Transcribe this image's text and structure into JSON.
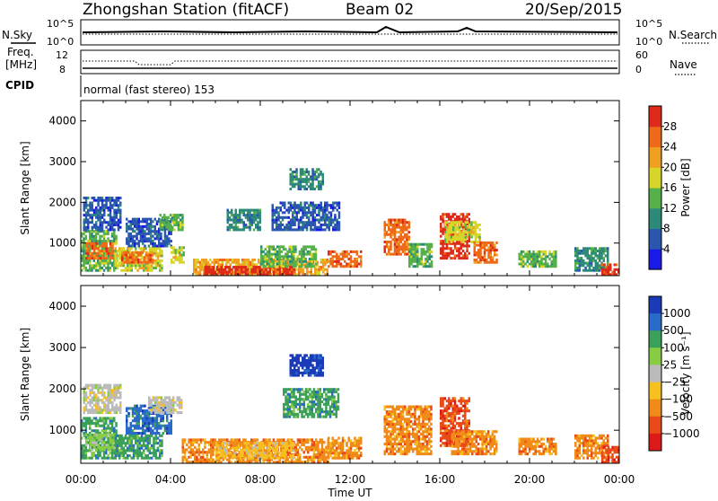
{
  "header": {
    "station": "Zhongshan Station (fitACF)",
    "beam": "Beam 02",
    "date": "20/Sep/2015"
  },
  "summary_panels": {
    "nsky_label": "N.Sky",
    "nsky_top": "10^5",
    "nsky_bottom": "10^0",
    "nsearch_label": "N.Search",
    "nsearch_top": "10^5",
    "nsearch_bottom": "10^0",
    "freq_label_1": "Freq.",
    "freq_label_2": "[MHz]",
    "freq_top": "12",
    "freq_bottom": "8",
    "nave_label": "Nave",
    "nave_top": "60",
    "nave_bottom": "0",
    "cpid_label": "CPID",
    "cpid_text": "normal (fast stereo) 153"
  },
  "chart_data": [
    {
      "type": "heatmap",
      "name": "power",
      "ylabel": "Slant Range [km]",
      "xlabel": "Time UT",
      "ylim": [
        200,
        4500
      ],
      "yticks": [
        1000,
        2000,
        3000,
        4000
      ],
      "xticks": [
        "00:00",
        "04:00",
        "08:00",
        "12:00",
        "16:00",
        "20:00",
        "00:00"
      ],
      "colorbar": {
        "label": "Power [dB]",
        "ticks": [
          "4",
          "8",
          "12",
          "16",
          "20",
          "24",
          "28"
        ],
        "colors": [
          "#1a1ae6",
          "#2a56b0",
          "#2e8a78",
          "#55b04a",
          "#d6d62a",
          "#f0a020",
          "#ee6a18",
          "#dd2a1a"
        ]
      },
      "regions": [
        {
          "t0": 0.0,
          "t1": 1.6,
          "r0": 300,
          "r1": 1300,
          "c": 3
        },
        {
          "t0": 0.2,
          "t1": 1.4,
          "r0": 600,
          "r1": 1000,
          "c": 6
        },
        {
          "t0": 0.1,
          "t1": 1.8,
          "r0": 1300,
          "r1": 2100,
          "c": 1
        },
        {
          "t0": 1.5,
          "t1": 3.6,
          "r0": 300,
          "r1": 900,
          "c": 4
        },
        {
          "t0": 1.8,
          "t1": 3.2,
          "r0": 500,
          "r1": 800,
          "c": 6
        },
        {
          "t0": 2.0,
          "t1": 4.0,
          "r0": 900,
          "r1": 1600,
          "c": 1
        },
        {
          "t0": 3.5,
          "t1": 4.5,
          "r0": 1300,
          "r1": 1700,
          "c": 3
        },
        {
          "t0": 4.0,
          "t1": 4.6,
          "r0": 500,
          "r1": 900,
          "c": 4
        },
        {
          "t0": 5.0,
          "t1": 11.0,
          "r0": 200,
          "r1": 600,
          "c": 5
        },
        {
          "t0": 5.5,
          "t1": 9.5,
          "r0": 200,
          "r1": 400,
          "c": 7
        },
        {
          "t0": 8.0,
          "t1": 10.5,
          "r0": 400,
          "r1": 900,
          "c": 3
        },
        {
          "t0": 11.0,
          "t1": 12.5,
          "r0": 400,
          "r1": 800,
          "c": 6
        },
        {
          "t0": 9.3,
          "t1": 10.8,
          "r0": 2300,
          "r1": 2800,
          "c": 2
        },
        {
          "t0": 8.5,
          "t1": 11.5,
          "r0": 1300,
          "r1": 2000,
          "c": 1
        },
        {
          "t0": 6.5,
          "t1": 8.0,
          "r0": 1300,
          "r1": 1800,
          "c": 2
        },
        {
          "t0": 13.5,
          "t1": 14.6,
          "r0": 700,
          "r1": 1600,
          "c": 6
        },
        {
          "t0": 14.6,
          "t1": 15.6,
          "r0": 400,
          "r1": 1000,
          "c": 3
        },
        {
          "t0": 16.0,
          "t1": 17.3,
          "r0": 600,
          "r1": 1700,
          "c": 7
        },
        {
          "t0": 16.2,
          "t1": 17.8,
          "r0": 1000,
          "r1": 1500,
          "c": 4
        },
        {
          "t0": 17.5,
          "t1": 18.5,
          "r0": 500,
          "r1": 1000,
          "c": 6
        },
        {
          "t0": 19.5,
          "t1": 21.2,
          "r0": 400,
          "r1": 800,
          "c": 3
        },
        {
          "t0": 22.0,
          "t1": 23.5,
          "r0": 300,
          "r1": 900,
          "c": 2
        },
        {
          "t0": 23.2,
          "t1": 24.0,
          "r0": 200,
          "r1": 500,
          "c": 7
        }
      ]
    },
    {
      "type": "heatmap",
      "name": "velocity",
      "ylabel": "Slant Range [km]",
      "xlabel": "Time UT",
      "ylim": [
        200,
        4500
      ],
      "yticks": [
        1000,
        2000,
        3000,
        4000
      ],
      "xticks": [
        "00:00",
        "04:00",
        "08:00",
        "12:00",
        "16:00",
        "20:00",
        "00:00"
      ],
      "colorbar": {
        "label": "Velocity [m s⁻¹]",
        "ticks": [
          "1000",
          "500",
          "100",
          "25",
          "−25",
          "−100",
          "−500",
          "−1000"
        ],
        "colors": [
          "#1a3ab8",
          "#2a6ac8",
          "#3aa05a",
          "#88cc44",
          "#bbbbbb",
          "#f5c020",
          "#f08a18",
          "#e84a18",
          "#dd1a1a"
        ]
      },
      "regions": [
        {
          "t0": 0.0,
          "t1": 1.6,
          "r0": 300,
          "r1": 1300,
          "c": 2
        },
        {
          "t0": 0.2,
          "t1": 1.5,
          "r0": 500,
          "r1": 900,
          "c": 3
        },
        {
          "t0": 0.1,
          "t1": 1.8,
          "r0": 1400,
          "r1": 2100,
          "c": 4
        },
        {
          "t0": 1.5,
          "t1": 3.6,
          "r0": 300,
          "r1": 900,
          "c": 2
        },
        {
          "t0": 2.0,
          "t1": 4.0,
          "r0": 900,
          "r1": 1600,
          "c": 1
        },
        {
          "t0": 3.0,
          "t1": 4.5,
          "r0": 1400,
          "r1": 1800,
          "c": 4
        },
        {
          "t0": 4.5,
          "t1": 11.0,
          "r0": 200,
          "r1": 800,
          "c": 6
        },
        {
          "t0": 6.0,
          "t1": 9.5,
          "r0": 300,
          "r1": 700,
          "c": 5
        },
        {
          "t0": 11.0,
          "t1": 12.5,
          "r0": 300,
          "r1": 800,
          "c": 6
        },
        {
          "t0": 9.3,
          "t1": 10.8,
          "r0": 2300,
          "r1": 2800,
          "c": 0
        },
        {
          "t0": 9.0,
          "t1": 11.5,
          "r0": 1300,
          "r1": 2000,
          "c": 2
        },
        {
          "t0": 13.5,
          "t1": 15.6,
          "r0": 400,
          "r1": 1600,
          "c": 6
        },
        {
          "t0": 16.0,
          "t1": 17.3,
          "r0": 600,
          "r1": 1800,
          "c": 7
        },
        {
          "t0": 16.5,
          "t1": 18.5,
          "r0": 400,
          "r1": 1000,
          "c": 6
        },
        {
          "t0": 19.5,
          "t1": 21.2,
          "r0": 400,
          "r1": 800,
          "c": 6
        },
        {
          "t0": 22.0,
          "t1": 23.5,
          "r0": 300,
          "r1": 900,
          "c": 6
        },
        {
          "t0": 23.2,
          "t1": 24.0,
          "r0": 200,
          "r1": 600,
          "c": 7
        }
      ]
    }
  ]
}
